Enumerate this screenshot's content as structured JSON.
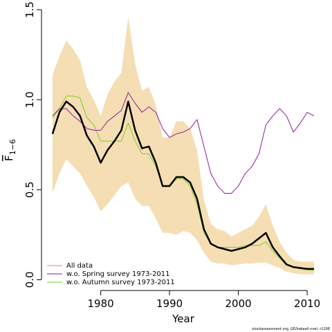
{
  "chart_data": {
    "type": "line",
    "xlabel": "Year",
    "ylabel": "F",
    "ylabel_sub": "1−6",
    "footer": "stockassessment.org, GE/hakeall-noel, r1208",
    "x": [
      1973,
      1974,
      1975,
      1976,
      1977,
      1978,
      1979,
      1980,
      1981,
      1982,
      1983,
      1984,
      1985,
      1986,
      1987,
      1988,
      1989,
      1990,
      1991,
      1992,
      1993,
      1994,
      1995,
      1996,
      1997,
      1998,
      1999,
      2000,
      2001,
      2002,
      2003,
      2004,
      2005,
      2006,
      2007,
      2008,
      2009,
      2010,
      2011
    ],
    "xlim": [
      1971.4,
      2012.6
    ],
    "xticks": [
      1980,
      1990,
      2000,
      2010
    ],
    "ylim": [
      -0.06,
      1.5
    ],
    "yticks": [
      {
        "value": 0,
        "label": "0.0"
      },
      0.5,
      {
        "value": 1,
        "label": "1.0"
      },
      1.5
    ],
    "band": {
      "color": "#f5deb3",
      "upper": [
        1.14,
        1.24,
        1.33,
        1.28,
        1.22,
        1.07,
        1.0,
        0.91,
        1.03,
        1.1,
        1.15,
        1.46,
        1.2,
        1.05,
        1.07,
        0.97,
        0.79,
        0.79,
        0.88,
        0.88,
        0.84,
        0.72,
        0.44,
        0.31,
        0.28,
        0.27,
        0.24,
        0.26,
        0.28,
        0.3,
        0.35,
        0.42,
        0.3,
        0.21,
        0.15,
        0.11,
        0.1,
        0.1,
        0.1
      ],
      "lower": [
        0.48,
        0.59,
        0.67,
        0.63,
        0.59,
        0.52,
        0.46,
        0.38,
        0.42,
        0.47,
        0.52,
        0.54,
        0.45,
        0.41,
        0.41,
        0.34,
        0.26,
        0.26,
        0.25,
        0.27,
        0.26,
        0.22,
        0.15,
        0.1,
        0.09,
        0.09,
        0.08,
        0.085,
        0.09,
        0.09,
        0.095,
        0.095,
        0.08,
        0.065,
        0.045,
        0.035,
        0.03,
        0.03,
        0.03
      ]
    },
    "series": [
      {
        "name": "All data",
        "color": "#000000",
        "legend_color": "#e87d8f",
        "width": 2.5,
        "values": [
          0.81,
          0.93,
          0.99,
          0.96,
          0.91,
          0.8,
          0.74,
          0.65,
          0.72,
          0.77,
          0.83,
          0.99,
          0.83,
          0.73,
          0.74,
          0.65,
          0.52,
          0.52,
          0.57,
          0.57,
          0.54,
          0.45,
          0.28,
          0.2,
          0.18,
          0.17,
          0.16,
          0.17,
          0.18,
          0.2,
          0.23,
          0.26,
          0.18,
          0.13,
          0.085,
          0.07,
          0.065,
          0.06,
          0.06
        ]
      },
      {
        "name": "w.o. Spring survey 1973-2011",
        "color": "#8b1a9b",
        "legend_color": "#8b1a9b",
        "width": 1,
        "values": [
          0.91,
          0.95,
          0.95,
          0.91,
          0.88,
          0.84,
          0.83,
          0.83,
          0.88,
          0.91,
          0.94,
          1.04,
          0.98,
          0.93,
          0.96,
          0.93,
          0.84,
          0.79,
          0.81,
          0.82,
          0.84,
          0.89,
          0.74,
          0.59,
          0.52,
          0.48,
          0.48,
          0.52,
          0.59,
          0.63,
          0.7,
          0.86,
          0.91,
          0.95,
          0.91,
          0.82,
          0.87,
          0.93,
          0.91
        ]
      },
      {
        "name": "w.o. Autumn survey 1973-2011",
        "color": "#7ccd1c",
        "legend_color": "#7ccd1c",
        "width": 1,
        "values": [
          0.9,
          0.95,
          1.02,
          1.02,
          1.01,
          0.9,
          0.86,
          0.77,
          0.77,
          0.77,
          0.77,
          0.87,
          0.77,
          0.7,
          0.7,
          0.63,
          0.52,
          0.52,
          0.56,
          0.56,
          0.52,
          0.42,
          0.26,
          0.2,
          0.18,
          0.18,
          0.18,
          0.18,
          0.19,
          0.19,
          0.19,
          0.21,
          0.16,
          0.12,
          0.08,
          0.07,
          0.06,
          0.055,
          0.05
        ]
      }
    ]
  }
}
